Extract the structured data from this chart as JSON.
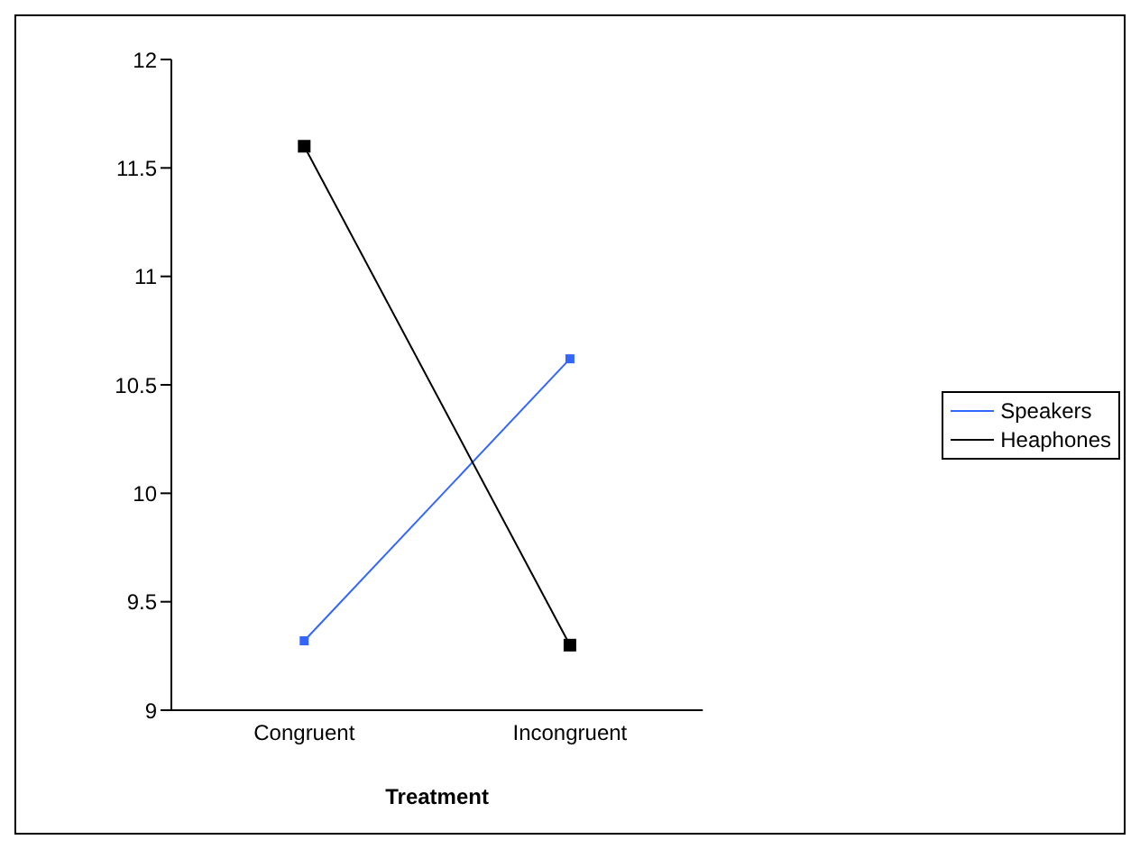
{
  "chart_data": {
    "type": "line",
    "xlabel": "Treatment",
    "categories": [
      "Congruent",
      "Incongruent"
    ],
    "series": [
      {
        "name": "Speakers",
        "color": "#3366ff",
        "values": [
          9.32,
          10.62
        ]
      },
      {
        "name": "Heaphones",
        "color": "#000000",
        "values": [
          11.6,
          9.3
        ]
      }
    ],
    "ylim": [
      9,
      12
    ],
    "yticks": [
      9,
      9.5,
      10,
      10.5,
      11,
      11.5,
      12
    ],
    "grid": false,
    "legend": "right",
    "marker": "square",
    "line_style": "solid"
  }
}
